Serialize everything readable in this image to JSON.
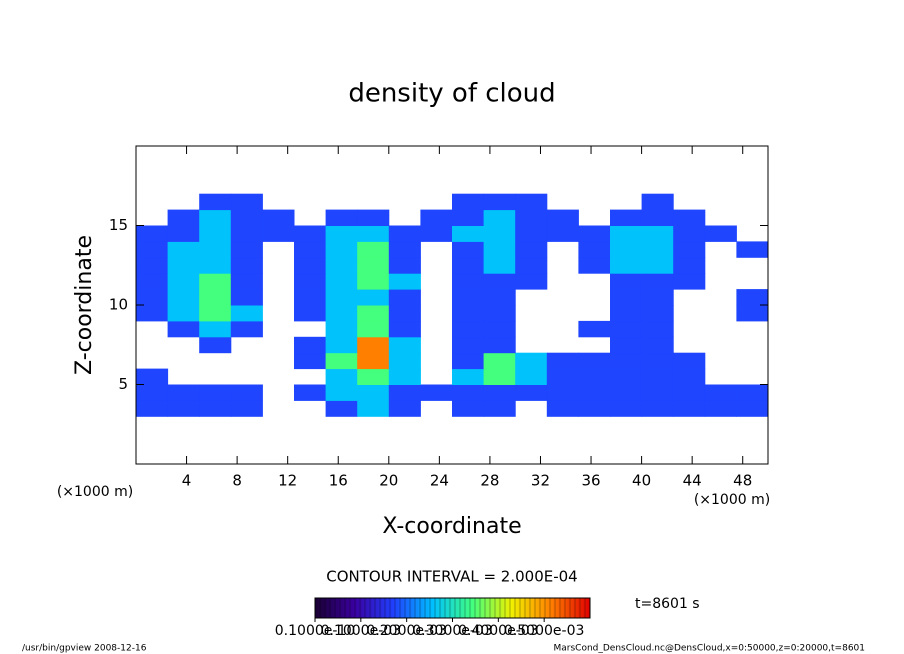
{
  "chart_data": {
    "type": "contour",
    "title": "density of cloud",
    "x_label": "X-coordinate",
    "y_label": "Z-coordinate",
    "x_unit": "(×1000 m)",
    "y_unit": "(×1000 m)",
    "contour_note": "CONTOUR INTERVAL = 2.000E-04",
    "time_label": "t=8601 s",
    "footer_left": "/usr/bin/gpview   2008-12-16",
    "footer_right": "MarsCond_DensCloud.nc@DensCloud,x=0:50000,z=0:20000,t=8601",
    "xlim": [
      0,
      50
    ],
    "ylim": [
      0,
      20
    ],
    "xticks": [
      4,
      8,
      12,
      16,
      20,
      24,
      28,
      32,
      36,
      40,
      44,
      48
    ],
    "yticks": [
      5,
      10,
      15
    ],
    "x": [
      1.25,
      3.75,
      6.25,
      8.75,
      11.25,
      13.75,
      16.25,
      18.75,
      21.25,
      23.75,
      26.25,
      28.75,
      31.25,
      33.75,
      36.25,
      38.75,
      41.25,
      43.75,
      46.25,
      48.75
    ],
    "y": [
      3.5,
      4.5,
      5.5,
      6.5,
      7.5,
      8.5,
      9.5,
      10.5,
      11.5,
      12.5,
      13.5,
      14.5,
      15.5,
      16.5
    ],
    "values": [
      [
        0.0001,
        0.0001,
        0.0001,
        0.0001,
        0,
        0,
        0.0001,
        0.0002,
        0.0001,
        0,
        0.0001,
        0.0001,
        0,
        0.0001,
        0.0001,
        0.0001,
        0.0001,
        0.0001,
        0.0001,
        0.0001
      ],
      [
        0.0001,
        0.0001,
        0.0001,
        0.0001,
        0,
        0.0001,
        0.0002,
        0.0002,
        0.0001,
        0.0001,
        0.0001,
        0.0001,
        0.0001,
        0.0001,
        0.0001,
        0.0001,
        0.0001,
        0.0001,
        0.0001,
        0.0001
      ],
      [
        0.0001,
        0,
        0,
        0,
        0,
        0,
        0.0002,
        0.0003,
        0.0002,
        0,
        0.0002,
        0.0003,
        0.0002,
        0.0001,
        0.0001,
        0.0001,
        0.0001,
        0.0001,
        0,
        0
      ],
      [
        0,
        0,
        0,
        0,
        0,
        0.0001,
        0.0003,
        0.0005,
        0.0002,
        0,
        0.0001,
        0.0003,
        0.0002,
        0.0001,
        0.0001,
        0.0001,
        0.0001,
        0.0001,
        0,
        0
      ],
      [
        0,
        0,
        0.0001,
        0,
        0,
        0.0001,
        0.0002,
        0.0005,
        0.0002,
        0,
        0.0001,
        0.0001,
        0,
        0,
        0,
        0.0001,
        0.0001,
        0,
        0,
        0
      ],
      [
        0,
        0.0001,
        0.0002,
        0.0001,
        0,
        0,
        0.0002,
        0.0003,
        0.0001,
        0,
        0.0001,
        0.0001,
        0,
        0,
        0.0001,
        0.0001,
        0.0001,
        0,
        0,
        0
      ],
      [
        0.0001,
        0.0002,
        0.0003,
        0.0002,
        0,
        0.0001,
        0.0002,
        0.0003,
        0.0001,
        0,
        0.0001,
        0.0001,
        0,
        0,
        0,
        0.0001,
        0.0001,
        0,
        0,
        0.0001
      ],
      [
        0.0001,
        0.0002,
        0.0003,
        0.0001,
        0,
        0.0001,
        0.0002,
        0.0002,
        0.0001,
        0,
        0.0001,
        0.0001,
        0,
        0,
        0,
        0.0001,
        0.0001,
        0,
        0,
        0.0001
      ],
      [
        0.0001,
        0.0002,
        0.0003,
        0.0001,
        0,
        0.0001,
        0.0002,
        0.0003,
        0.0002,
        0,
        0.0001,
        0.0001,
        0.0001,
        0,
        0,
        0.0001,
        0.0001,
        0.0001,
        0,
        0
      ],
      [
        0.0001,
        0.0002,
        0.0002,
        0.0001,
        0,
        0.0001,
        0.0002,
        0.0003,
        0.0001,
        0,
        0.0001,
        0.0002,
        0.0001,
        0,
        0.0001,
        0.0002,
        0.0002,
        0.0001,
        0,
        0
      ],
      [
        0.0001,
        0.0002,
        0.0002,
        0.0001,
        0,
        0.0001,
        0.0002,
        0.0003,
        0.0001,
        0,
        0.0001,
        0.0002,
        0.0001,
        0,
        0.0001,
        0.0002,
        0.0002,
        0.0001,
        0,
        0.0001
      ],
      [
        0.0001,
        0.0001,
        0.0002,
        0.0001,
        0.0001,
        0.0001,
        0.0002,
        0.0002,
        0.0001,
        0.0001,
        0.0002,
        0.0002,
        0.0001,
        0.0001,
        0.0001,
        0.0002,
        0.0002,
        0.0001,
        0.0001,
        0
      ],
      [
        0,
        0.0001,
        0.0002,
        0.0001,
        0.0001,
        0,
        0.0001,
        0.0001,
        0,
        0.0001,
        0.0001,
        0.0002,
        0.0001,
        0.0001,
        0,
        0.0001,
        0.0001,
        0.0001,
        0,
        0
      ],
      [
        0,
        0,
        0.0001,
        0.0001,
        0,
        0,
        0,
        0,
        0,
        0,
        0.0001,
        0.0001,
        0.0001,
        0,
        0,
        0,
        0.0001,
        0,
        0,
        0
      ]
    ],
    "clim": [
      0,
      0.0006
    ],
    "colormap": [
      "#1a0033",
      "#3a00a0",
      "#2040ff",
      "#00c0ff",
      "#40ff80",
      "#f0f000",
      "#ff8000",
      "#e00000"
    ],
    "colorbar_ticks": [
      {
        "value": 1e-11,
        "label": "0.1000e-10"
      },
      {
        "value": 0.0001,
        "label": "0.1000e-03"
      },
      {
        "value": 0.0002,
        "label": "0.2000e-03"
      },
      {
        "value": 0.0003,
        "label": "0.3000e-03"
      },
      {
        "value": 0.0004,
        "label": "0.4000e-03"
      },
      {
        "value": 0.0005,
        "label": "0.5000e-03"
      }
    ]
  }
}
